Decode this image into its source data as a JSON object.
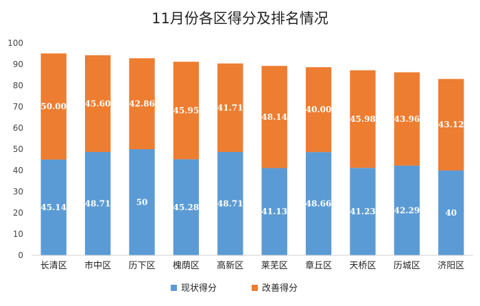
{
  "chart_data": {
    "type": "bar",
    "stacked": true,
    "title": "11月份各区得分及排名情况",
    "xlabel": "",
    "ylabel": "",
    "ylim": [
      0,
      100
    ],
    "yticks": [
      0,
      10,
      20,
      30,
      40,
      50,
      60,
      70,
      80,
      90,
      100
    ],
    "grid": false,
    "legend_position": "bottom",
    "categories": [
      "长清区",
      "市中区",
      "历下区",
      "槐荫区",
      "高新区",
      "莱芜区",
      "章丘区",
      "天桥区",
      "历城区",
      "济阳区"
    ],
    "series": [
      {
        "name": "现状得分",
        "color": "#5B9BD5",
        "values": [
          45.14,
          48.71,
          50,
          45.28,
          48.71,
          41.13,
          48.66,
          41.23,
          42.29,
          40
        ],
        "labels": [
          "45.14",
          "48.71",
          "50",
          "45.28",
          "48.71",
          "41.13",
          "48.66",
          "41.23",
          "42.29",
          "40"
        ]
      },
      {
        "name": "改善得分",
        "color": "#ED7D31",
        "values": [
          50.0,
          45.6,
          42.86,
          45.95,
          41.71,
          48.14,
          40.0,
          45.98,
          43.96,
          43.12
        ],
        "labels": [
          "50.00",
          "45.60",
          "42.86",
          "45.95",
          "41.71",
          "48.14",
          "40.00",
          "45.98",
          "43.96",
          "43.12"
        ]
      }
    ]
  }
}
